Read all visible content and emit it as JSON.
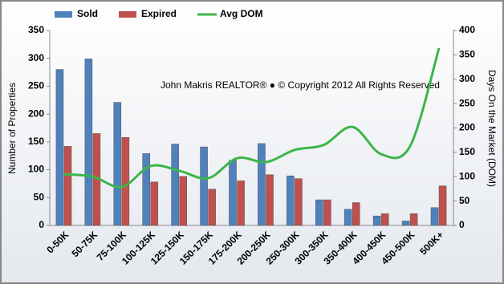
{
  "chart_data": {
    "type": "bar-line",
    "annotation": "John Makris REALTOR®  ●  © Copyright 2012 All Rights Reserved",
    "y_label": "Number of Properties",
    "y2_label": "Days On the Market (DOM)",
    "categories": [
      "0-50K",
      "50-75K",
      "75-100K",
      "100-125K",
      "125-150K",
      "150-175K",
      "175-200K",
      "200-250K",
      "250-300K",
      "300-350K",
      "350-400K",
      "400-450K",
      "450-500K",
      "500K+"
    ],
    "series": [
      {
        "name": "Sold",
        "type": "bar",
        "color": "#4f81bd",
        "values": [
          280,
          299,
          221,
          129,
          146,
          141,
          117,
          147,
          89,
          46,
          29,
          17,
          8,
          32
        ]
      },
      {
        "name": "Expired",
        "type": "bar",
        "color": "#c0504d",
        "values": [
          142,
          165,
          158,
          78,
          88,
          65,
          80,
          91,
          84,
          46,
          41,
          21,
          21,
          71
        ]
      },
      {
        "name": "Avg DOM",
        "type": "line",
        "axis": "y2",
        "color": "#3cb54a",
        "values": [
          105,
          100,
          79,
          122,
          112,
          97,
          138,
          130,
          155,
          165,
          202,
          146,
          163,
          364
        ]
      }
    ],
    "ylim": [
      0,
      350
    ],
    "yticks": [
      0,
      50,
      100,
      150,
      200,
      250,
      300,
      350
    ],
    "y2lim": [
      0,
      400
    ],
    "y2ticks": [
      0,
      50,
      100,
      150,
      200,
      250,
      300,
      350,
      400
    ],
    "grid": false,
    "legend": "top-left"
  }
}
